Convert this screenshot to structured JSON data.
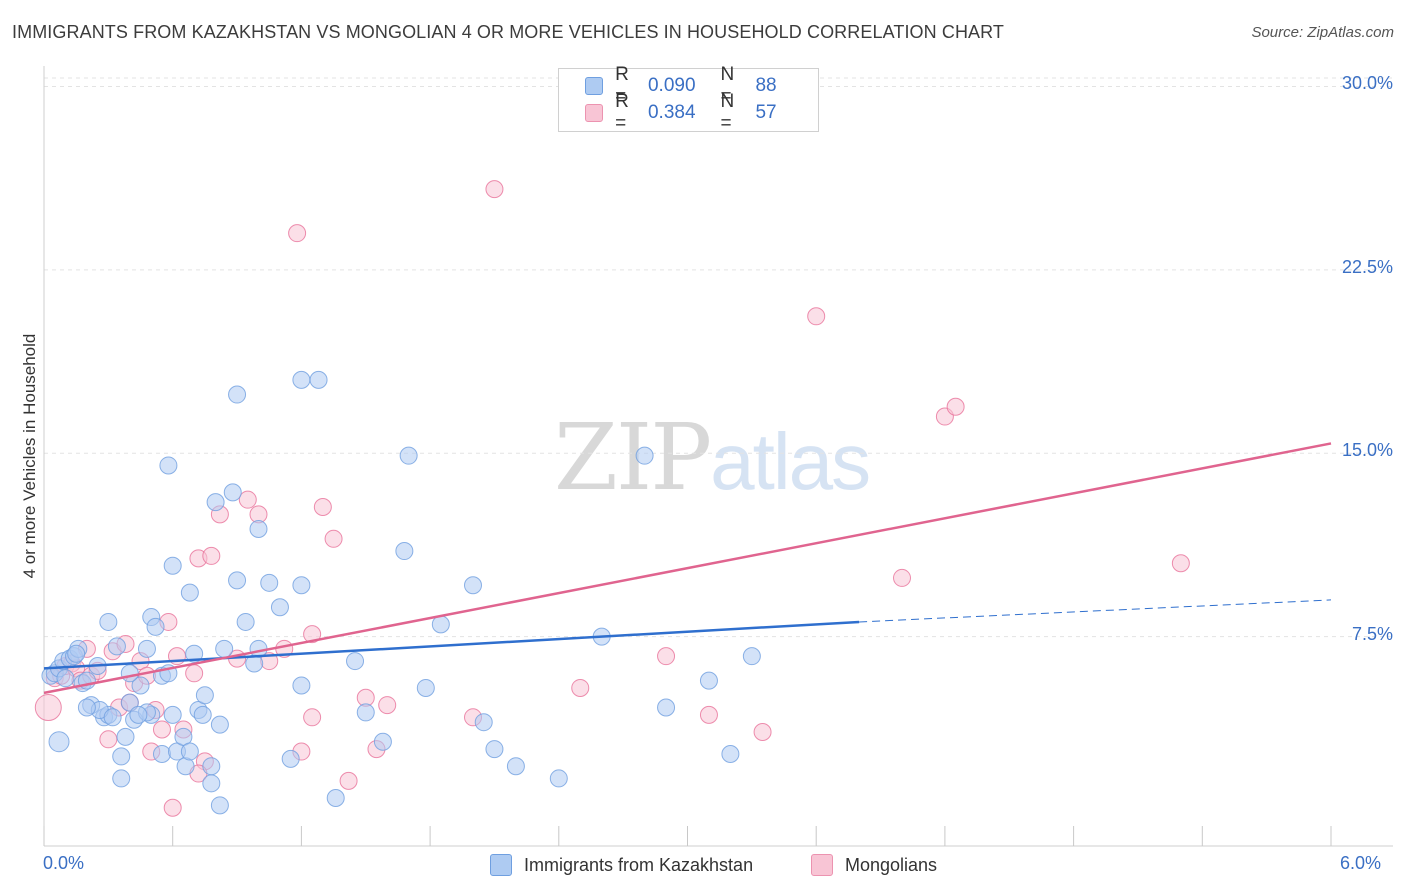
{
  "header": {
    "title": "IMMIGRANTS FROM KAZAKHSTAN VS MONGOLIAN 4 OR MORE VEHICLES IN HOUSEHOLD CORRELATION CHART",
    "source": "Source: ZipAtlas.com"
  },
  "watermark": {
    "zip": "ZIP",
    "atlas": "atlas"
  },
  "legend": {
    "rows": [
      {
        "r_label": "R =",
        "r_value": "0.090",
        "n_label": "N =",
        "n_value": "88",
        "fill": "#aecbf2",
        "stroke": "#6f9fe0"
      },
      {
        "r_label": "R =",
        "r_value": "0.384",
        "n_label": "N =",
        "n_value": "57",
        "fill": "#f8c5d5",
        "stroke": "#ec93b0"
      }
    ]
  },
  "bottom_legend": {
    "kazakhstan": "Immigrants from Kazakhstan",
    "mongolians": "Mongolians"
  },
  "chart_data": {
    "type": "scatter",
    "title": "IMMIGRANTS FROM KAZAKHSTAN VS MONGOLIAN 4 OR MORE VEHICLES IN HOUSEHOLD CORRELATION CHART",
    "xlabel": "",
    "ylabel": "4 or more Vehicles in Household",
    "xlim": [
      0,
      6
    ],
    "ylim": [
      0,
      31
    ],
    "x_tick_labels": [
      "0.0%",
      "6.0%"
    ],
    "y_ticks": [
      7.5,
      15.0,
      22.5,
      30.0
    ],
    "y_tick_labels": [
      "7.5%",
      "15.0%",
      "22.5%",
      "30.0%"
    ],
    "grid": true,
    "series": [
      {
        "name": "Immigrants from Kazakhstan",
        "color": "#6f9fe0",
        "fill": "#aecbf2",
        "trend": {
          "x": [
            0,
            3.8
          ],
          "y": [
            6.2,
            8.1
          ],
          "dashed_to": [
            6.0,
            9.0
          ]
        },
        "points": [
          [
            0.03,
            5.9
          ],
          [
            0.05,
            6.0
          ],
          [
            0.07,
            6.2
          ],
          [
            0.09,
            6.5
          ],
          [
            0.1,
            5.8
          ],
          [
            0.12,
            6.6
          ],
          [
            0.14,
            6.7
          ],
          [
            0.16,
            7.0
          ],
          [
            0.18,
            5.6
          ],
          [
            0.2,
            5.7
          ],
          [
            0.22,
            4.7
          ],
          [
            0.25,
            6.3
          ],
          [
            0.28,
            4.2
          ],
          [
            0.3,
            4.3
          ],
          [
            0.07,
            3.2
          ],
          [
            0.34,
            7.1
          ],
          [
            0.36,
            2.6
          ],
          [
            0.38,
            3.4
          ],
          [
            0.4,
            4.8
          ],
          [
            0.45,
            5.5
          ],
          [
            0.48,
            7.0
          ],
          [
            0.5,
            8.3
          ],
          [
            0.52,
            7.9
          ],
          [
            0.55,
            2.7
          ],
          [
            0.58,
            14.5
          ],
          [
            0.6,
            10.4
          ],
          [
            0.62,
            2.8
          ],
          [
            0.65,
            3.4
          ],
          [
            0.66,
            2.2
          ],
          [
            0.68,
            9.3
          ],
          [
            0.7,
            6.8
          ],
          [
            0.72,
            4.5
          ],
          [
            0.75,
            5.1
          ],
          [
            0.78,
            1.5
          ],
          [
            0.8,
            13.0
          ],
          [
            0.82,
            3.9
          ],
          [
            0.84,
            7.0
          ],
          [
            0.88,
            13.4
          ],
          [
            0.9,
            9.8
          ],
          [
            0.94,
            8.1
          ],
          [
            0.98,
            6.4
          ],
          [
            1.05,
            9.7
          ],
          [
            1.1,
            8.7
          ],
          [
            1.15,
            2.5
          ],
          [
            1.2,
            9.6
          ],
          [
            0.26,
            4.5
          ],
          [
            0.3,
            8.1
          ],
          [
            0.32,
            4.2
          ],
          [
            0.42,
            4.1
          ],
          [
            0.5,
            4.3
          ],
          [
            0.55,
            5.9
          ],
          [
            0.6,
            4.3
          ],
          [
            0.68,
            2.8
          ],
          [
            0.74,
            4.3
          ],
          [
            0.78,
            2.2
          ],
          [
            0.82,
            0.6
          ],
          [
            1.0,
            11.9
          ],
          [
            1.2,
            18.0
          ],
          [
            1.28,
            18.0
          ],
          [
            1.36,
            0.9
          ],
          [
            1.45,
            6.5
          ],
          [
            1.5,
            4.4
          ],
          [
            1.58,
            3.2
          ],
          [
            1.68,
            11.0
          ],
          [
            1.7,
            14.9
          ],
          [
            1.78,
            5.4
          ],
          [
            1.85,
            8.0
          ],
          [
            2.0,
            9.6
          ],
          [
            2.05,
            4.0
          ],
          [
            2.1,
            2.9
          ],
          [
            2.2,
            2.2
          ],
          [
            2.4,
            1.7
          ],
          [
            2.6,
            7.5
          ],
          [
            2.8,
            14.9
          ],
          [
            2.9,
            4.6
          ],
          [
            3.1,
            5.7
          ],
          [
            3.2,
            2.7
          ],
          [
            3.3,
            6.7
          ],
          [
            0.15,
            6.8
          ],
          [
            0.2,
            4.6
          ],
          [
            0.4,
            6.0
          ],
          [
            0.48,
            4.4
          ],
          [
            1.0,
            7.0
          ],
          [
            1.2,
            5.5
          ],
          [
            0.9,
            17.4
          ],
          [
            0.58,
            6.0
          ],
          [
            0.36,
            1.7
          ],
          [
            0.44,
            4.3
          ]
        ]
      },
      {
        "name": "Mongolians",
        "color": "#e8729a",
        "fill": "#f8c5d5",
        "trend": {
          "x": [
            0,
            6.0
          ],
          "y": [
            5.2,
            15.4
          ]
        },
        "points": [
          [
            0.02,
            4.6
          ],
          [
            0.05,
            5.8
          ],
          [
            0.08,
            5.9
          ],
          [
            0.1,
            6.3
          ],
          [
            0.13,
            6.4
          ],
          [
            0.15,
            6.2
          ],
          [
            0.17,
            5.7
          ],
          [
            0.2,
            7.0
          ],
          [
            0.22,
            5.9
          ],
          [
            0.25,
            6.1
          ],
          [
            0.3,
            3.3
          ],
          [
            0.32,
            6.9
          ],
          [
            0.35,
            4.6
          ],
          [
            0.38,
            7.2
          ],
          [
            0.4,
            4.8
          ],
          [
            0.42,
            5.6
          ],
          [
            0.45,
            6.5
          ],
          [
            0.48,
            5.9
          ],
          [
            0.5,
            2.8
          ],
          [
            0.52,
            4.5
          ],
          [
            0.55,
            3.7
          ],
          [
            0.58,
            8.1
          ],
          [
            0.62,
            6.7
          ],
          [
            0.65,
            3.7
          ],
          [
            0.7,
            6.0
          ],
          [
            0.72,
            10.7
          ],
          [
            0.75,
            2.4
          ],
          [
            0.78,
            10.8
          ],
          [
            0.82,
            12.5
          ],
          [
            0.9,
            6.6
          ],
          [
            0.95,
            13.1
          ],
          [
            1.0,
            12.5
          ],
          [
            1.05,
            6.5
          ],
          [
            1.12,
            7.0
          ],
          [
            1.2,
            2.8
          ],
          [
            1.25,
            7.6
          ],
          [
            1.3,
            12.8
          ],
          [
            1.35,
            11.5
          ],
          [
            1.42,
            1.6
          ],
          [
            1.5,
            5.0
          ],
          [
            1.55,
            2.9
          ],
          [
            2.0,
            4.2
          ],
          [
            2.5,
            5.4
          ],
          [
            2.9,
            6.7
          ],
          [
            3.1,
            4.3
          ],
          [
            3.35,
            3.6
          ],
          [
            3.6,
            20.6
          ],
          [
            4.0,
            9.9
          ],
          [
            4.2,
            16.5
          ],
          [
            4.25,
            16.9
          ],
          [
            5.3,
            10.5
          ],
          [
            1.18,
            24.0
          ],
          [
            2.1,
            25.8
          ],
          [
            0.6,
            0.5
          ],
          [
            0.72,
            1.9
          ],
          [
            1.6,
            4.7
          ],
          [
            1.25,
            4.2
          ]
        ]
      }
    ]
  }
}
